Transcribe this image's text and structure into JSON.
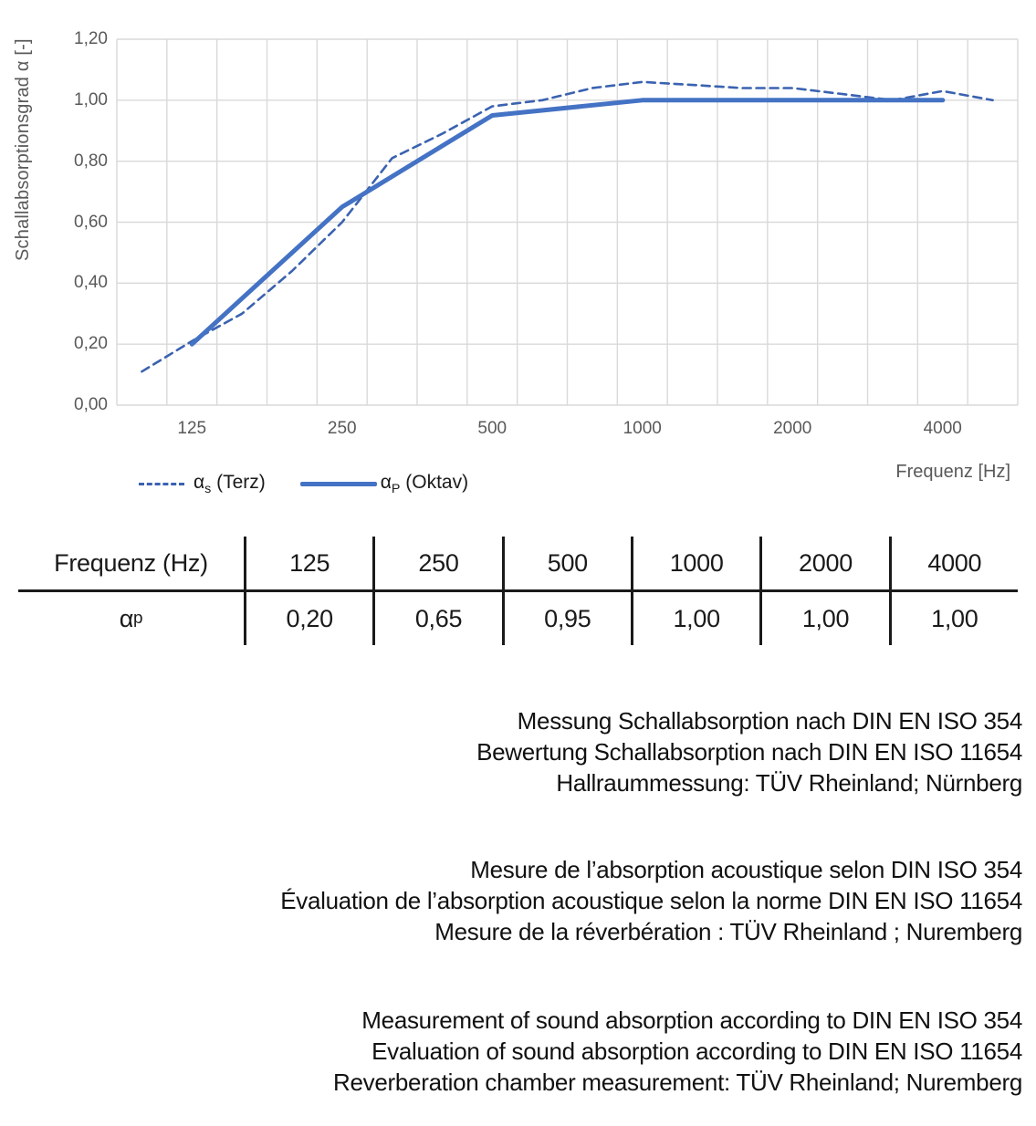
{
  "chart": {
    "ylabel": "Schallabsorptionsgrad α [-]",
    "xlabel": "Frequenz [Hz]",
    "legend": [
      {
        "sym": "α",
        "sub": "s",
        "rest": " (Terz)",
        "line": "dashed"
      },
      {
        "sym": "α",
        "sub": "P",
        "rest": " (Oktav)",
        "line": "solid"
      }
    ]
  },
  "chart_data": {
    "type": "line",
    "title": "",
    "xlabel": "Frequenz [Hz]",
    "ylabel": "Schallabsorptionsgrad α [-]",
    "ylim": [
      0,
      1.2
    ],
    "grid": true,
    "x_scale": "log (third-octave slots, 100–5000 Hz)",
    "y_tick_values": [
      0,
      0.2,
      0.4,
      0.6,
      0.8,
      1.0,
      1.2
    ],
    "y_ticks": [
      "0,00",
      "0,20",
      "0,40",
      "0,60",
      "0,80",
      "1,00",
      "1,20"
    ],
    "x_tick_values": [
      125,
      250,
      500,
      1000,
      2000,
      4000
    ],
    "x_ticks": [
      "125",
      "250",
      "500",
      "1000",
      "2000",
      "4000"
    ],
    "legend_position": "bottom-left",
    "series": [
      {
        "name": "αs (Terz)",
        "style": "dashed",
        "color": "#3a62b0",
        "x": [
          100,
          125,
          160,
          200,
          250,
          315,
          400,
          500,
          630,
          800,
          1000,
          1250,
          1600,
          2000,
          2500,
          3150,
          4000,
          5000
        ],
        "values": [
          0.11,
          0.21,
          0.3,
          0.44,
          0.6,
          0.81,
          0.89,
          0.98,
          1.0,
          1.04,
          1.06,
          1.05,
          1.04,
          1.04,
          1.02,
          1.0,
          1.03,
          1.0
        ]
      },
      {
        "name": "αP (Oktav)",
        "style": "solid",
        "color": "#4472c4",
        "x": [
          125,
          250,
          500,
          1000,
          2000,
          4000
        ],
        "values": [
          0.2,
          0.65,
          0.95,
          1.0,
          1.0,
          1.0
        ]
      }
    ]
  },
  "table": {
    "header_label": "Frequenz (Hz)",
    "header_values": [
      "125",
      "250",
      "500",
      "1000",
      "2000",
      "4000"
    ],
    "row_label": {
      "sym": "α",
      "sub": "p"
    },
    "values": [
      "0,20",
      "0,65",
      "0,95",
      "1,00",
      "1,00",
      "1,00"
    ]
  },
  "notes": {
    "de": {
      "lines": [
        "Messung Schallabsorption nach DIN EN ISO 354",
        "Bewertung Schallabsorption nach DIN EN ISO 11654",
        "Hallraummessung: TÜV Rheinland; Nürnberg"
      ]
    },
    "fr": {
      "lines": [
        "Mesure de l’absorption acoustique selon DIN ISO 354",
        "Évaluation de l’absorption acoustique selon la norme DIN EN ISO 11654",
        "Mesure de la réverbération : TÜV Rheinland ; Nuremberg"
      ]
    },
    "en": {
      "lines": [
        "Measurement of sound absorption according to DIN EN ISO 354",
        "Evaluation of sound absorption according to DIN EN ISO 11654",
        "Reverberation chamber measurement: TÜV Rheinland; Nuremberg"
      ]
    }
  },
  "colors": {
    "series_dashed": "#3a62b0",
    "series_solid": "#4472c4",
    "gridline": "#d9d9d9",
    "axis_text": "#595959",
    "table_line": "#1a1a1a"
  }
}
